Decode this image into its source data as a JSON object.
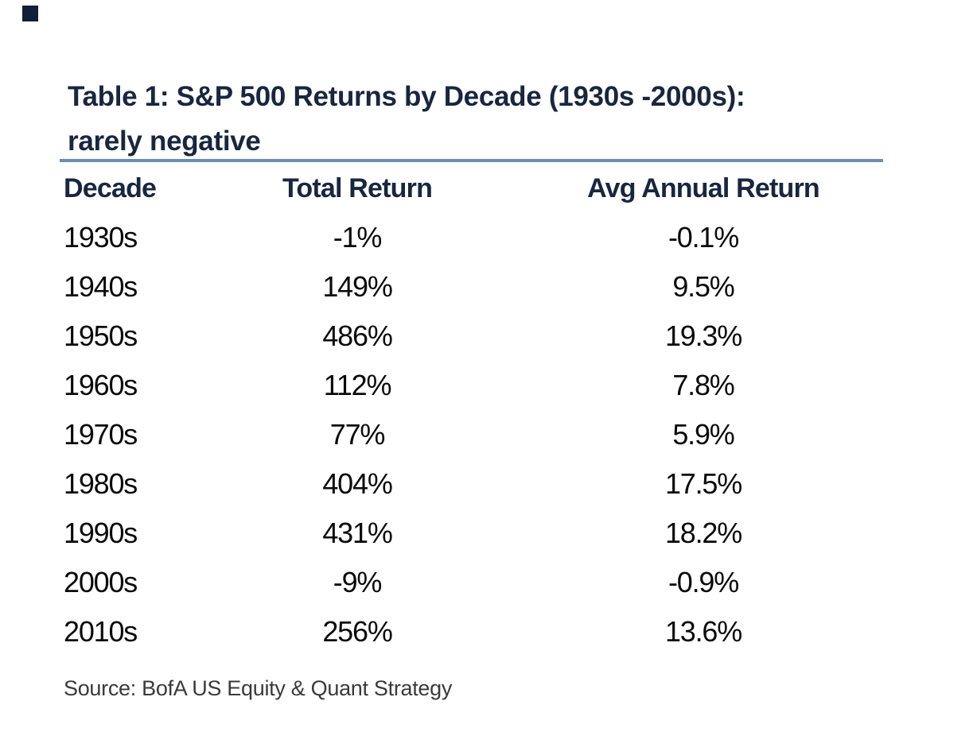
{
  "colors": {
    "background": "#FFFFFF",
    "navy": "#18263F",
    "rule_blue": "#6E8CB4",
    "data_text": "#0A0A0A",
    "source_text": "#3A3A3A",
    "corner_square": "#111F38"
  },
  "title": {
    "line1": "Table 1: S&P 500 Returns by Decade (1930s -2000s):",
    "line2": "rarely negative"
  },
  "table": {
    "columns": [
      "Decade",
      "Total Return",
      "Avg Annual Return"
    ],
    "rows": [
      [
        "1930s",
        "-1%",
        "-0.1%"
      ],
      [
        "1940s",
        "149%",
        "9.5%"
      ],
      [
        "1950s",
        "486%",
        "19.3%"
      ],
      [
        "1960s",
        "112%",
        "7.8%"
      ],
      [
        "1970s",
        "77%",
        "5.9%"
      ],
      [
        "1980s",
        "404%",
        "17.5%"
      ],
      [
        "1990s",
        "431%",
        "18.2%"
      ],
      [
        "2000s",
        "-9%",
        "-0.9%"
      ],
      [
        "2010s",
        "256%",
        "13.6%"
      ]
    ]
  },
  "source": {
    "text": "Source: BofA US Equity & Quant Strategy"
  },
  "chart_data": {
    "type": "table",
    "title": "Table 1: S&P 500 Returns by Decade (1930s -2000s): rarely negative",
    "columns": [
      "Decade",
      "Total Return",
      "Avg Annual Return"
    ],
    "decades": [
      "1930s",
      "1940s",
      "1950s",
      "1960s",
      "1970s",
      "1980s",
      "1990s",
      "2000s",
      "2010s"
    ],
    "total_return_pct": [
      -1,
      149,
      486,
      112,
      77,
      404,
      431,
      -9,
      256
    ],
    "avg_annual_return_pct": [
      -0.1,
      9.5,
      19.3,
      7.8,
      5.9,
      17.5,
      18.2,
      -0.9,
      13.6
    ],
    "rows": [
      [
        "1930s",
        "-1%",
        "-0.1%"
      ],
      [
        "1940s",
        "149%",
        "9.5%"
      ],
      [
        "1950s",
        "486%",
        "19.3%"
      ],
      [
        "1960s",
        "112%",
        "7.8%"
      ],
      [
        "1970s",
        "77%",
        "5.9%"
      ],
      [
        "1980s",
        "404%",
        "17.5%"
      ],
      [
        "1990s",
        "431%",
        "18.2%"
      ],
      [
        "2000s",
        "-9%",
        "-0.9%"
      ],
      [
        "2010s",
        "256%",
        "13.6%"
      ]
    ],
    "source": "Source: BofA US Equity & Quant Strategy",
    "legend_position": "none",
    "grid": false
  }
}
